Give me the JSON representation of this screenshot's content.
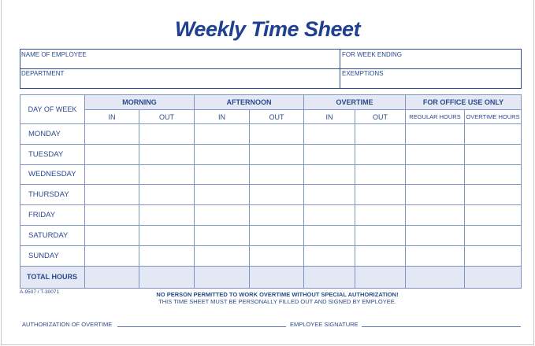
{
  "title": "Weekly Time Sheet",
  "info": {
    "employee": "NAME OF EMPLOYEE",
    "week_ending": "FOR WEEK ENDING",
    "department": "DEPARTMENT",
    "exemptions": "EXEMPTIONS"
  },
  "table": {
    "day_header": "DAY OF WEEK",
    "groups": [
      "MORNING",
      "AFTERNOON",
      "OVERTIME",
      "FOR OFFICE USE ONLY"
    ],
    "sub": [
      "IN",
      "OUT",
      "IN",
      "OUT",
      "IN",
      "OUT",
      "REGULAR HOURS",
      "OVERTIME HOURS"
    ],
    "days": [
      "MONDAY",
      "TUESDAY",
      "WEDNESDAY",
      "THURSDAY",
      "FRIDAY",
      "SATURDAY",
      "SUNDAY"
    ],
    "total": "TOTAL HOURS"
  },
  "colors": {
    "ink": "#2a4a8c",
    "title": "#1f3f8f",
    "shade": "#e3e8f4"
  },
  "footer": {
    "code": "A-9507 / T-30071",
    "notice": "NO PERSON PERMITTED TO WORK OVERTIME WITHOUT SPECIAL AUTHORIZATION!",
    "instruction": "THIS TIME SHEET MUST BE PERSONALLY FILLED OUT AND SIGNED BY EMPLOYEE.",
    "auth": "AUTHORIZATION OF OVERTIME",
    "signature": "EMPLOYEE SIGNATURE"
  }
}
